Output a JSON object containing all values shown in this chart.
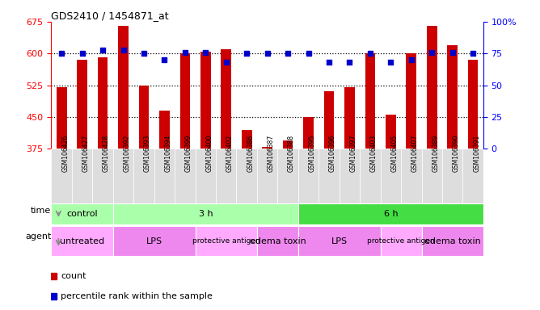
{
  "title": "GDS2410 / 1454871_at",
  "samples": [
    "GSM106426",
    "GSM106427",
    "GSM106428",
    "GSM106392",
    "GSM106393",
    "GSM106394",
    "GSM106399",
    "GSM106400",
    "GSM106402",
    "GSM106386",
    "GSM106387",
    "GSM106388",
    "GSM106395",
    "GSM106396",
    "GSM106397",
    "GSM106403",
    "GSM106405",
    "GSM106407",
    "GSM106389",
    "GSM106390",
    "GSM106391"
  ],
  "counts": [
    520,
    585,
    590,
    665,
    525,
    465,
    600,
    605,
    610,
    420,
    380,
    395,
    450,
    510,
    520,
    600,
    455,
    600,
    665,
    620,
    585
  ],
  "percentile_ranks": [
    75,
    75,
    78,
    78,
    75,
    70,
    76,
    76,
    68,
    75,
    75,
    75,
    75,
    68,
    68,
    75,
    68,
    70,
    76,
    76,
    75
  ],
  "ylim_left": [
    375,
    675
  ],
  "ylim_right": [
    0,
    100
  ],
  "yticks_left": [
    375,
    450,
    525,
    600,
    675
  ],
  "yticks_right": [
    0,
    25,
    50,
    75,
    100
  ],
  "bar_color": "#cc0000",
  "dot_color": "#0000cc",
  "time_groups": [
    {
      "label": "control",
      "start": 0,
      "end": 3,
      "color": "#aaffaa"
    },
    {
      "label": "3 h",
      "start": 3,
      "end": 12,
      "color": "#aaffaa"
    },
    {
      "label": "6 h",
      "start": 12,
      "end": 21,
      "color": "#44dd44"
    }
  ],
  "agent_groups": [
    {
      "label": "untreated",
      "start": 0,
      "end": 3,
      "color": "#ffaaff"
    },
    {
      "label": "LPS",
      "start": 3,
      "end": 7,
      "color": "#ee88ee"
    },
    {
      "label": "protective antigen",
      "start": 7,
      "end": 10,
      "color": "#ffaaff"
    },
    {
      "label": "edema toxin",
      "start": 10,
      "end": 12,
      "color": "#ee88ee"
    },
    {
      "label": "LPS",
      "start": 12,
      "end": 16,
      "color": "#ee88ee"
    },
    {
      "label": "protective antigen",
      "start": 16,
      "end": 18,
      "color": "#ffaaff"
    },
    {
      "label": "edema toxin",
      "start": 18,
      "end": 21,
      "color": "#ee88ee"
    }
  ],
  "time_label": "time",
  "agent_label": "agent",
  "legend_count_label": "count",
  "legend_pct_label": "percentile rank within the sample",
  "sample_bg_color": "#dddddd",
  "dotted_line_pcts": [
    75,
    50,
    25
  ]
}
